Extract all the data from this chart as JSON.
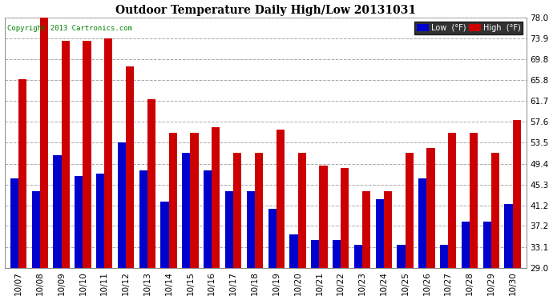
{
  "title": "Outdoor Temperature Daily High/Low 20131031",
  "copyright": "Copyright 2013 Cartronics.com",
  "legend_low_label": "Low  (°F)",
  "legend_high_label": "High  (°F)",
  "low_color": "#0000cc",
  "high_color": "#cc0000",
  "background_color": "#ffffff",
  "grid_color": "#aaaaaa",
  "ymin": 29.0,
  "ymax": 78.0,
  "yticks": [
    29.0,
    33.1,
    37.2,
    41.2,
    45.3,
    49.4,
    53.5,
    57.6,
    61.7,
    65.8,
    69.8,
    73.9,
    78.0
  ],
  "categories": [
    "10/07",
    "10/08",
    "10/09",
    "10/10",
    "10/11",
    "10/12",
    "10/13",
    "10/14",
    "10/15",
    "10/16",
    "10/17",
    "10/18",
    "10/19",
    "10/20",
    "10/21",
    "10/22",
    "10/23",
    "10/24",
    "10/25",
    "10/26",
    "10/27",
    "10/28",
    "10/29",
    "10/30"
  ],
  "highs": [
    66.0,
    78.0,
    73.5,
    73.5,
    74.0,
    68.5,
    62.0,
    55.5,
    55.5,
    56.5,
    51.5,
    51.5,
    56.0,
    51.5,
    49.0,
    48.5,
    44.0,
    44.0,
    51.5,
    52.5,
    55.5,
    55.5,
    51.5,
    58.0
  ],
  "lows": [
    46.5,
    44.0,
    51.0,
    47.0,
    47.5,
    53.5,
    48.0,
    42.0,
    51.5,
    48.0,
    44.0,
    44.0,
    40.5,
    35.5,
    34.5,
    34.5,
    33.5,
    42.5,
    33.5,
    46.5,
    33.5,
    38.0,
    38.0,
    41.5
  ]
}
